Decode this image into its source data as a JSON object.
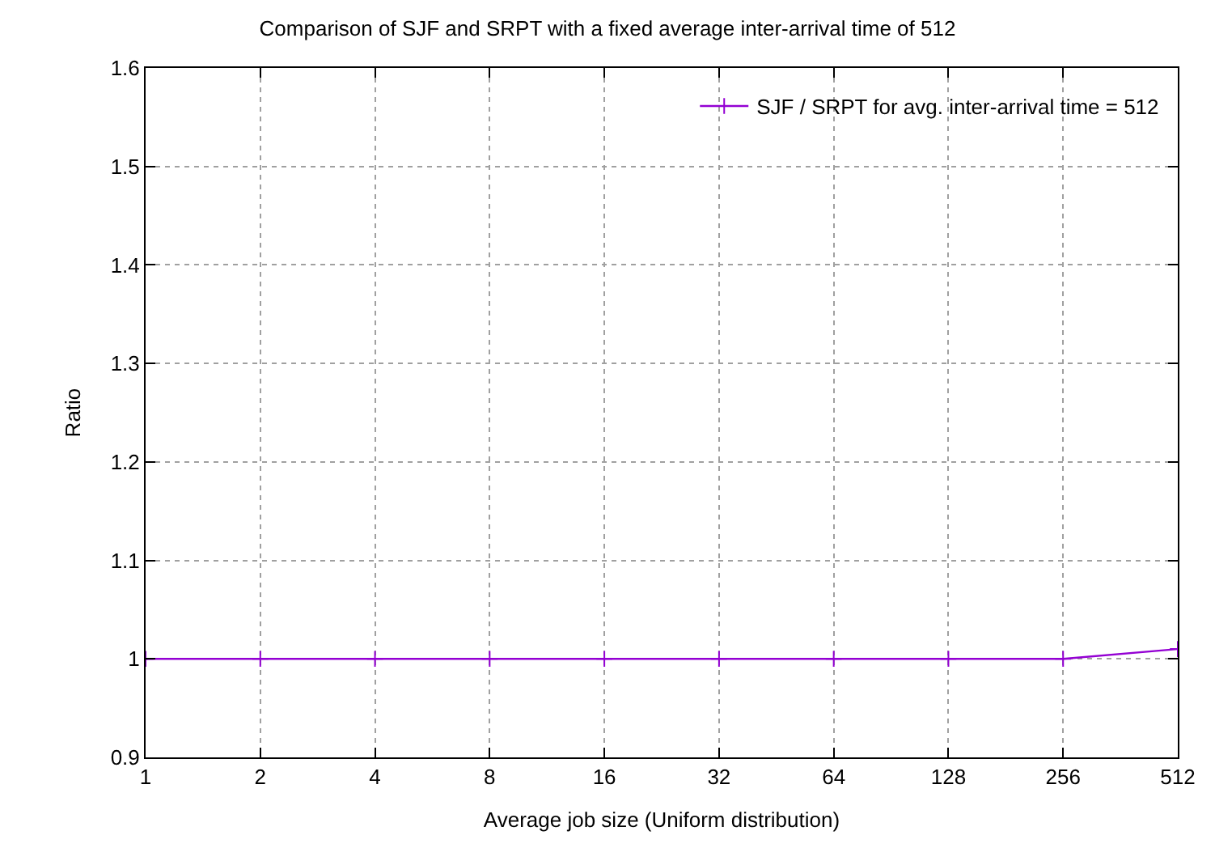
{
  "chart_data": {
    "type": "line",
    "title": "Comparison of SJF and SRPT with a fixed average inter-arrival time of 512",
    "xlabel": "Average job size (Uniform distribution)",
    "ylabel": "Ratio",
    "x": [
      1,
      2,
      4,
      8,
      16,
      32,
      64,
      128,
      256,
      512
    ],
    "series": [
      {
        "name": "SJF / SRPT for avg. inter-arrival time = 512",
        "color": "#9400d3",
        "values": [
          1,
          1,
          1,
          1,
          1,
          1,
          1,
          1,
          1,
          1.01
        ]
      }
    ],
    "log": "x",
    "xlim": [
      1,
      512
    ],
    "xticks": [
      1,
      2,
      4,
      8,
      16,
      32,
      64,
      128,
      256,
      512
    ],
    "ylim": [
      0.9,
      1.6
    ],
    "yticks": [
      0.9,
      1,
      1.1,
      1.2,
      1.3,
      1.4,
      1.5,
      1.6
    ],
    "grid": true,
    "legend": "top right",
    "marker": "cross",
    "line_style": "solid"
  }
}
